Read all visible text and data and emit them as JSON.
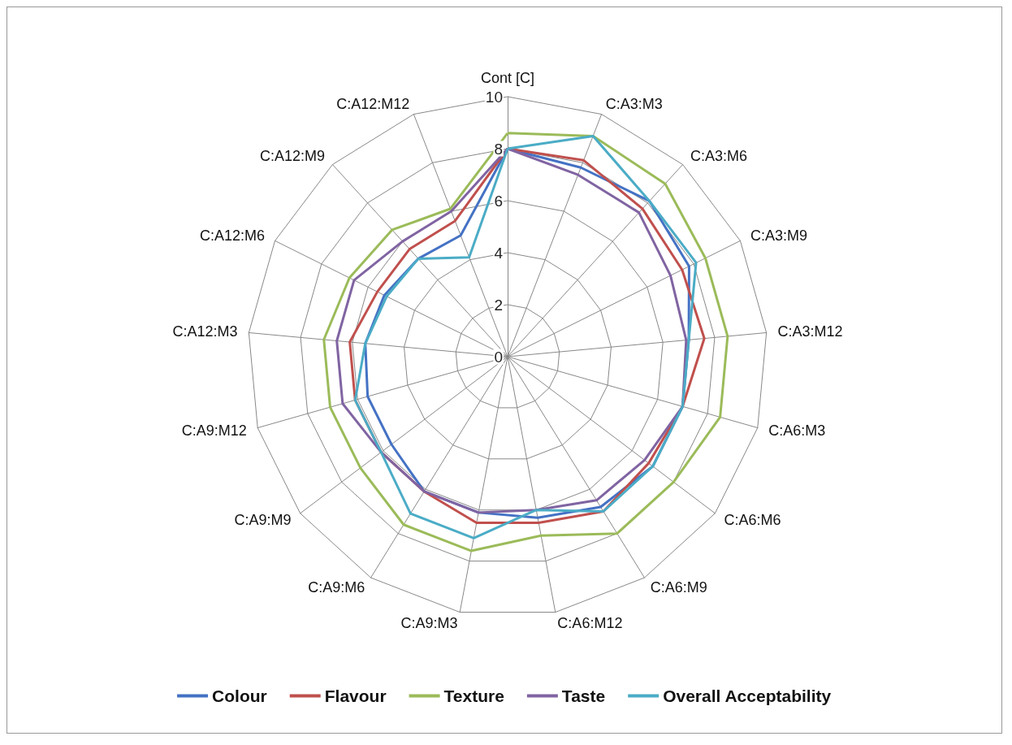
{
  "chart_data": {
    "type": "radar",
    "categories": [
      "Cont [C]",
      "C:A3:M3",
      "C:A3:M6",
      "C:A3:M9",
      "C:A3:M12",
      "C:A6:M3",
      "C:A6:M6",
      "C:A6:M9",
      "C:A6:M12",
      "C:A9:M3",
      "C:A9:M6",
      "C:A9:M9",
      "C:A9:M12",
      "C:A12:M3",
      "C:A12:M6",
      "C:A12:M9",
      "C:A12:M12"
    ],
    "series": [
      {
        "name": "Colour",
        "color": "#4472c4",
        "values": [
          8.0,
          7.8,
          8.1,
          7.8,
          7.0,
          7.0,
          7.0,
          6.8,
          6.3,
          6.1,
          6.1,
          5.6,
          5.6,
          5.5,
          5.3,
          5.1,
          5.0
        ]
      },
      {
        "name": "Flavour",
        "color": "#c0504d",
        "values": [
          8.0,
          8.1,
          7.7,
          7.5,
          7.6,
          7.0,
          6.8,
          7.0,
          6.5,
          6.5,
          6.1,
          6.1,
          6.1,
          6.1,
          5.6,
          5.6,
          5.6
        ]
      },
      {
        "name": "Texture",
        "color": "#9bbb59",
        "values": [
          8.6,
          9.1,
          9.0,
          8.5,
          8.5,
          8.5,
          8.0,
          8.0,
          7.0,
          7.6,
          7.6,
          7.1,
          7.1,
          7.1,
          6.8,
          6.6,
          6.1
        ]
      },
      {
        "name": "Taste",
        "color": "#8064a2",
        "values": [
          8.0,
          7.5,
          7.5,
          7.0,
          6.9,
          7.0,
          6.6,
          6.5,
          6.0,
          6.1,
          6.1,
          6.1,
          6.6,
          6.6,
          6.6,
          6.0,
          6.0
        ]
      },
      {
        "name": "Overall Acceptability",
        "color": "#4bacc6",
        "values": [
          8.0,
          9.1,
          8.1,
          8.1,
          7.0,
          7.0,
          7.0,
          7.0,
          6.0,
          7.1,
          7.1,
          6.1,
          6.1,
          5.5,
          5.2,
          5.1,
          4.1
        ]
      }
    ],
    "ylim": [
      0,
      10
    ],
    "yticks": [
      0,
      2,
      4,
      6,
      8,
      10
    ],
    "legend": "bottom",
    "grid": true
  }
}
